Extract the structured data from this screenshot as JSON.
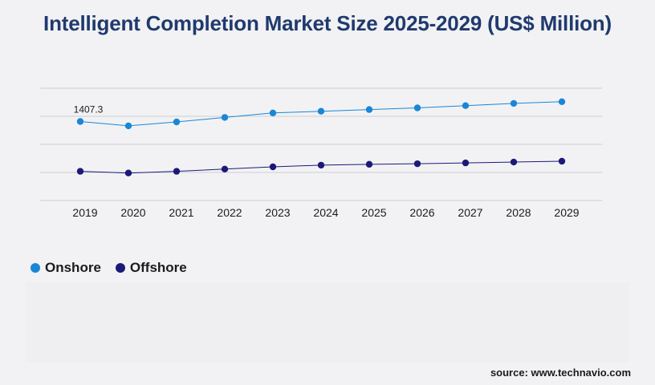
{
  "title": "Intelligent Completion Market Size 2025-2029 (US$ Million)",
  "source": "source: www.technavio.com",
  "chart_data": {
    "type": "line",
    "title": "Intelligent Completion Market Size 2025-2029 (US$ Million)",
    "categories": [
      "2019",
      "2020",
      "2021",
      "2022",
      "2023",
      "2024",
      "2025",
      "2026",
      "2027",
      "2028",
      "2029"
    ],
    "ylim": [
      0,
      2000
    ],
    "grid": true,
    "legend_position": "bottom-left",
    "series": [
      {
        "name": "Onshore",
        "color": "#1a87d6",
        "values": [
          1407.3,
          1330,
          1400,
          1480,
          1560,
          1590,
          1620,
          1650,
          1690,
          1730,
          1760
        ],
        "data_labels": [
          "1407.3",
          "",
          "",
          "",
          "",
          "",
          "",
          "",
          "",
          "",
          ""
        ]
      },
      {
        "name": "Offshore",
        "color": "#1c1a78",
        "values": [
          520,
          490,
          520,
          560,
          600,
          630,
          645,
          655,
          670,
          685,
          700
        ]
      }
    ]
  }
}
